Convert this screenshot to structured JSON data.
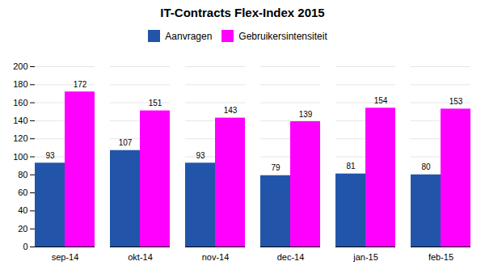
{
  "chart_data": {
    "type": "bar",
    "title": "IT-Contracts Flex-Index 2015",
    "categories": [
      "sep-14",
      "okt-14",
      "nov-14",
      "dec-14",
      "jan-15",
      "feb-15"
    ],
    "series": [
      {
        "name": "Aanvragen",
        "color": "#2255AA",
        "values": [
          93,
          107,
          93,
          79,
          81,
          80
        ]
      },
      {
        "name": "Gebruikersintensiteit",
        "color": "#FF00FF",
        "values": [
          172,
          151,
          143,
          139,
          154,
          153
        ]
      }
    ],
    "ylim": [
      0,
      200
    ],
    "yticks": [
      0,
      20,
      40,
      60,
      80,
      100,
      120,
      140,
      160,
      180,
      200
    ],
    "grid": true,
    "legend": "top",
    "data_labels": true
  }
}
